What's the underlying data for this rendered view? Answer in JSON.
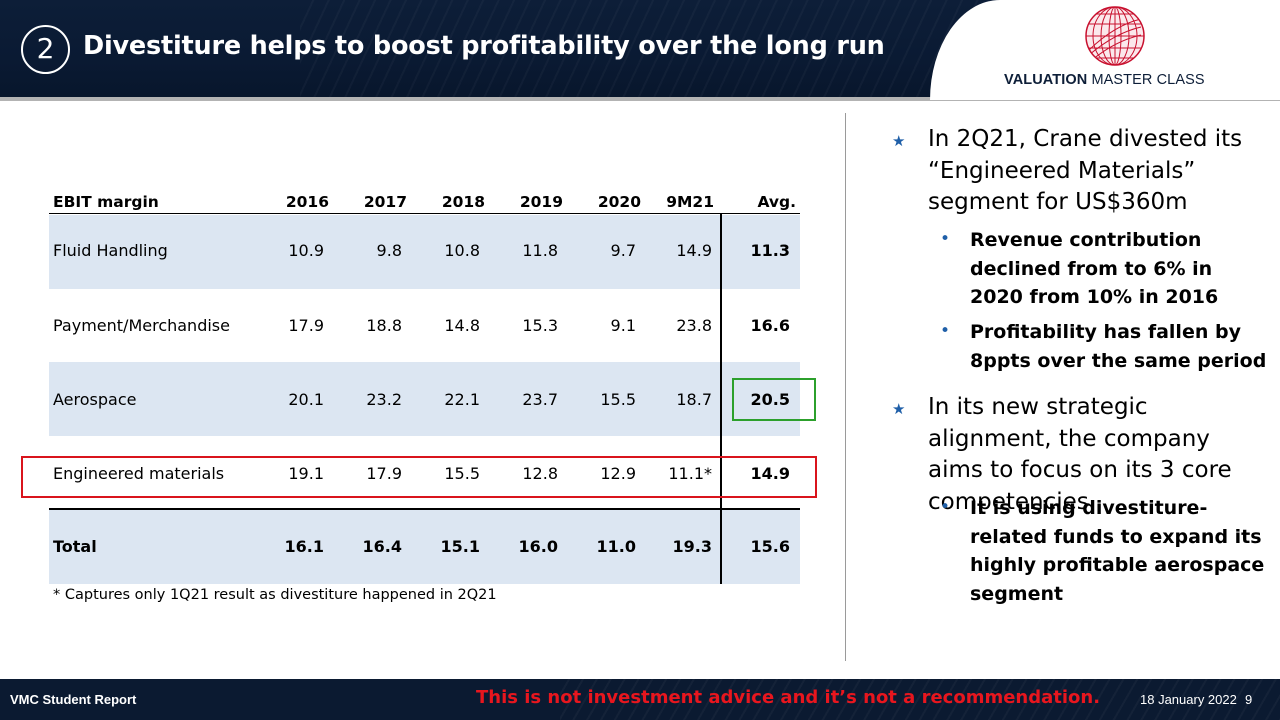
{
  "header": {
    "section_number": "2",
    "title": "Divestiture helps to boost profitability over the long run",
    "logo_text_bold": "VALUATION",
    "logo_text_rest": " MASTER CLASS"
  },
  "table": {
    "columns": [
      "EBIT margin",
      "2016",
      "2017",
      "2018",
      "2019",
      "2020",
      "9M21",
      "Avg."
    ],
    "rows": [
      {
        "label": "Fluid Handling",
        "values": [
          "10.9",
          "9.8",
          "10.8",
          "11.8",
          "9.7",
          "14.9"
        ],
        "avg": "11.3"
      },
      {
        "label": "Payment/Merchandise",
        "values": [
          "17.9",
          "18.8",
          "14.8",
          "15.3",
          "9.1",
          "23.8"
        ],
        "avg": "16.6"
      },
      {
        "label": "Aerospace",
        "values": [
          "20.1",
          "23.2",
          "22.1",
          "23.7",
          "15.5",
          "18.7"
        ],
        "avg": "20.5"
      },
      {
        "label": "Engineered materials",
        "values": [
          "19.1",
          "17.9",
          "15.5",
          "12.8",
          "12.9",
          "11.1*"
        ],
        "avg": "14.9"
      }
    ],
    "total": {
      "label": "Total",
      "values": [
        "16.1",
        "16.4",
        "15.1",
        "16.0",
        "11.0",
        "19.3"
      ],
      "avg": "15.6"
    },
    "footnote": "* Captures only 1Q21 result as divestiture happened in 2Q21"
  },
  "bullets": {
    "b1": "In 2Q21, Crane divested its “Engineered Materials” segment for US$360m",
    "b1_sub1": "Revenue contribution declined from to 6% in 2020 from 10% in 2016",
    "b1_sub2": "Profitability has fallen by 8ppts over the same period",
    "b2": "In its new strategic alignment, the company aims to focus on its 3 core competencies",
    "b2_sub1": "It is using divestiture-related funds to expand its highly profitable aerospace segment"
  },
  "footer": {
    "left": "VMC Student Report",
    "disclaimer": "This is not investment advice and it’s not a recommendation.",
    "date": "18 January 2022",
    "page": "9"
  },
  "colors": {
    "navy": "#0d1e38",
    "row_shade": "#dce6f2",
    "highlight_green": "#2ca02c",
    "highlight_red": "#d9141c",
    "bullet_blue": "#1f5fa8",
    "logo_red": "#c8102e"
  },
  "icons": {
    "logo": "globe-logo-icon",
    "bullet_primary": "star-bullet-icon",
    "bullet_secondary": "dot-bullet-icon"
  }
}
